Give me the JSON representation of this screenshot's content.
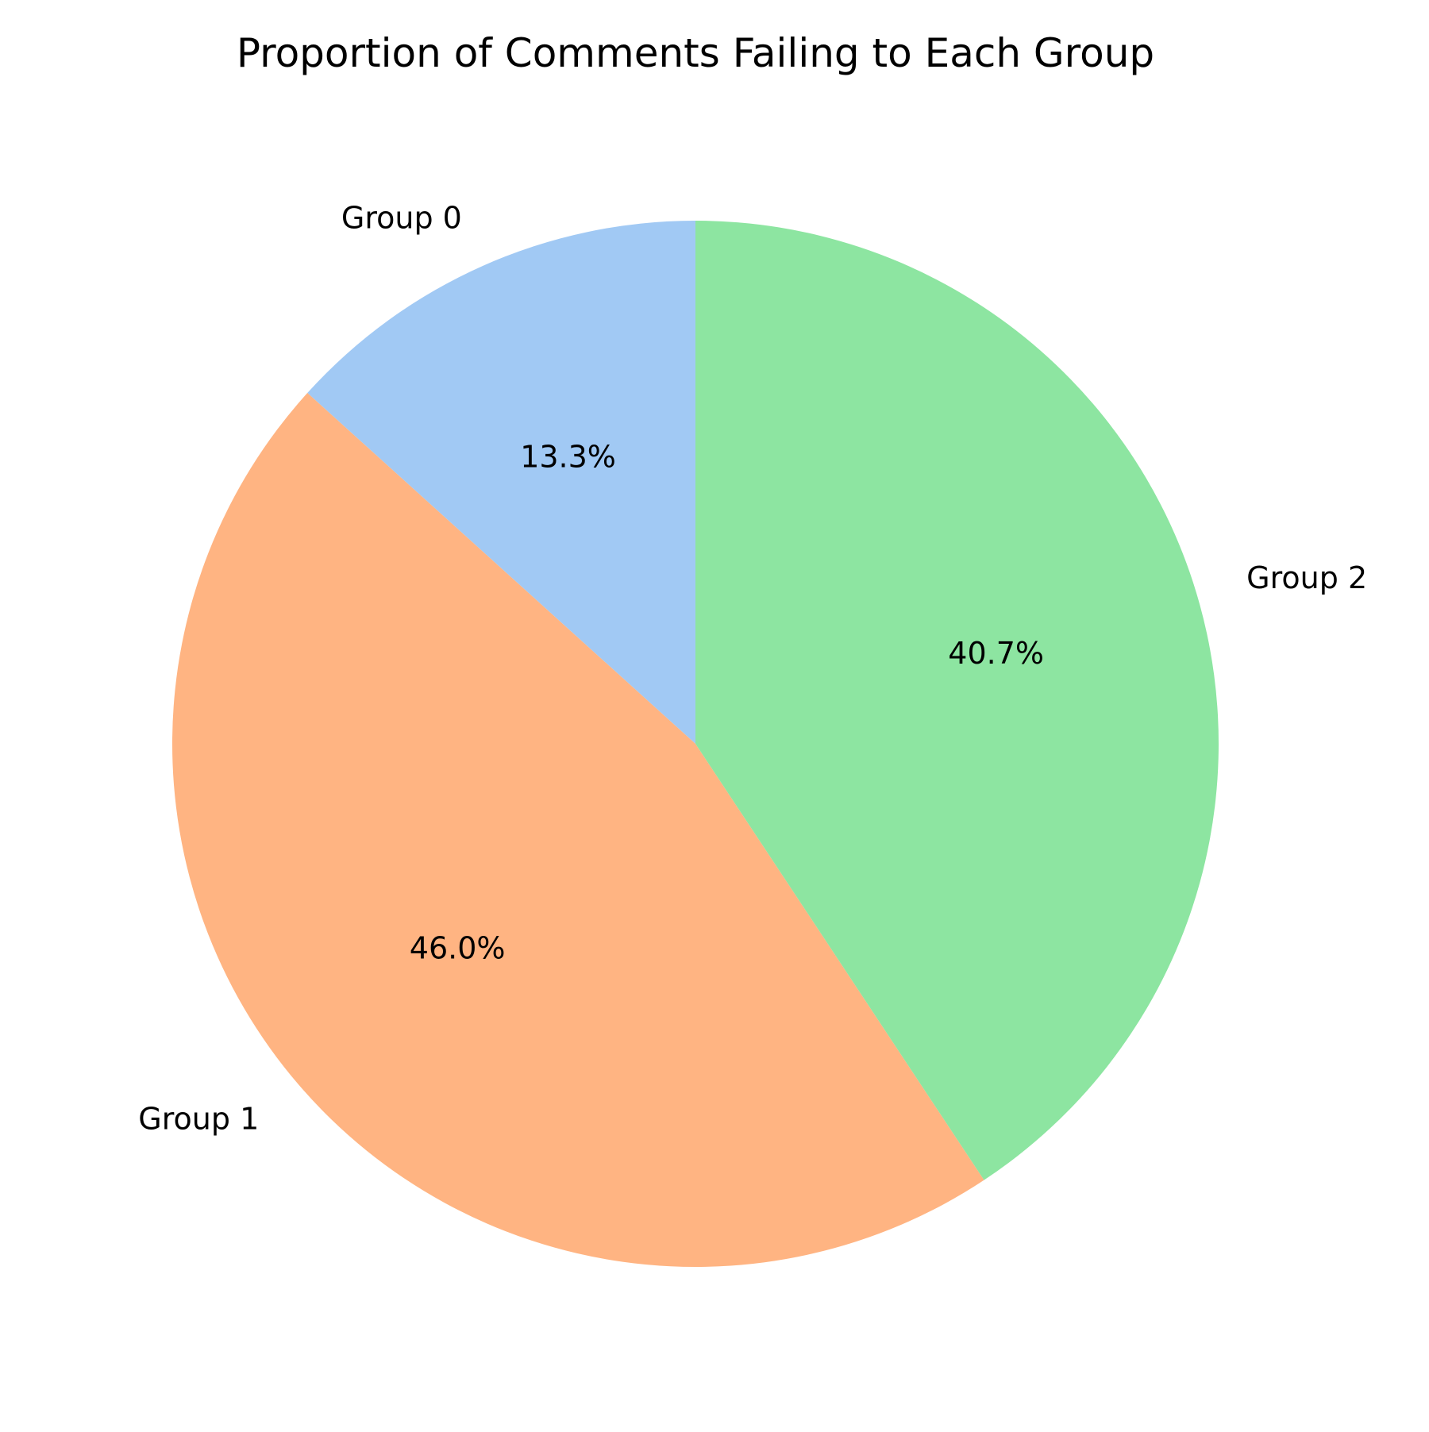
{
  "chart_data": {
    "type": "pie",
    "title": "Proportion of Comments Failing to Each Group",
    "slices": [
      {
        "label": "Group 0",
        "value": 13.3,
        "pct_label": "13.3%",
        "color": "#a1c9f4"
      },
      {
        "label": "Group 1",
        "value": 46.0,
        "pct_label": "46.0%",
        "color": "#ffb482"
      },
      {
        "label": "Group 2",
        "value": 40.7,
        "pct_label": "40.7%",
        "color": "#8de5a1"
      }
    ],
    "start_angle_deg": 90,
    "direction": "counterclockwise",
    "legend": "none"
  }
}
